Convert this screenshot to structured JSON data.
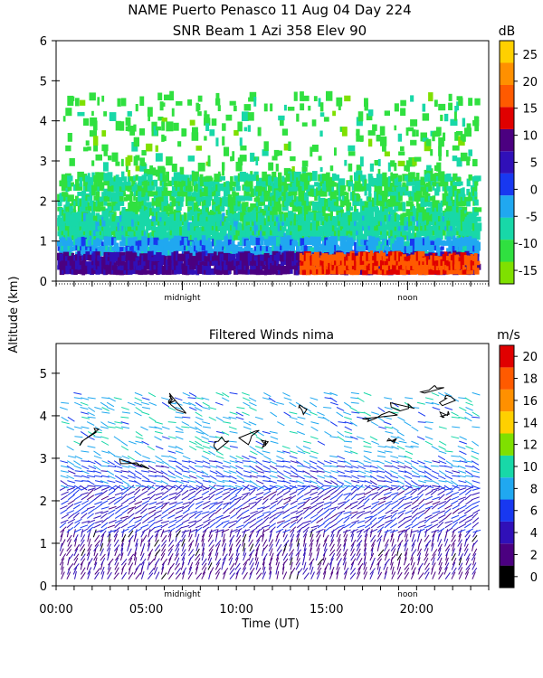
{
  "header": {
    "title_line1": "NAME Puerto Penasco  11 Aug 04 Day 224",
    "title_line2": "SNR Beam 1 Azi 358 Elev 90"
  },
  "shared": {
    "ylabel": "Altitude (km)",
    "xlabel": "Time (UT)",
    "x_tick_labels": [
      "00:00",
      "05:00",
      "10:00",
      "15:00",
      "20:00"
    ],
    "marker_labels": [
      "midnight",
      "noon"
    ]
  },
  "chart_data": [
    {
      "type": "heatmap",
      "title": "SNR Beam 1 Azi 358 Elev 90",
      "xlabel": "",
      "ylabel": "Altitude (km)",
      "xlim": [
        0,
        24
      ],
      "ylim": [
        0,
        6
      ],
      "y_ticks": [
        0,
        1,
        2,
        3,
        4,
        5,
        6
      ],
      "colorbar": {
        "unit": "dB",
        "ticks": [
          -15,
          -10,
          -5,
          0,
          5,
          10,
          15,
          20,
          25
        ],
        "colors": [
          "#7fe000",
          "#30e040",
          "#18d8a8",
          "#20a8f0",
          "#1838f0",
          "#3010b8",
          "#4b0080",
          "#e00000",
          "#ff5a00",
          "#ff9000",
          "#ffd000"
        ]
      },
      "layers": [
        {
          "name": "sparse echoes",
          "ymin": 2.6,
          "ymax": 4.6,
          "value": -13
        },
        {
          "name": "upper band",
          "ymin": 1.6,
          "ymax": 2.6,
          "value": -11
        },
        {
          "name": "mid band",
          "ymin": 1.0,
          "ymax": 1.6,
          "value": -9
        },
        {
          "name": "lower band",
          "ymin": 0.6,
          "ymax": 1.0,
          "value": -4
        },
        {
          "name": "boundary layer",
          "ymin": 0.15,
          "ymax": 0.6,
          "value": 8
        },
        {
          "name": "daytime surface max",
          "xmin": 13.5,
          "xmax": 23.3,
          "ymin": 0.15,
          "ymax": 0.6,
          "value": 17
        }
      ]
    },
    {
      "type": "heatmap",
      "title": "Filtered Winds nima",
      "xlabel": "Time (UT)",
      "ylabel": "Altitude (km)",
      "xlim": [
        0,
        24
      ],
      "ylim": [
        0,
        5.7
      ],
      "y_ticks": [
        0,
        1,
        2,
        3,
        4,
        5
      ],
      "x_ticks": [
        0,
        5,
        10,
        15,
        20
      ],
      "colorbar": {
        "unit": "m/s",
        "ticks": [
          0,
          2,
          4,
          6,
          8,
          10,
          12,
          14,
          16,
          18,
          20
        ],
        "colors": [
          "#000000",
          "#4b0080",
          "#3010b8",
          "#1838f0",
          "#20a8f0",
          "#18d8a8",
          "#7fe000",
          "#ffd000",
          "#ff9000",
          "#ff5a00",
          "#e00000"
        ]
      },
      "layers": [
        {
          "name": "surface winds",
          "ymin": 0.1,
          "ymax": 1.2,
          "value": 2
        },
        {
          "name": "low level winds",
          "ymin": 1.2,
          "ymax": 2.3,
          "value": 4
        },
        {
          "name": "mid level winds",
          "ymin": 2.3,
          "ymax": 3.0,
          "value": 6
        },
        {
          "name": "upper winds",
          "ymin": 3.0,
          "ymax": 4.6,
          "value": 8
        }
      ]
    }
  ]
}
